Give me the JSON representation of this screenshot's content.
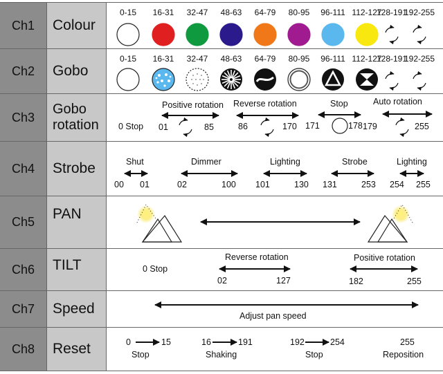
{
  "rows": [
    {
      "ch": "Ch1",
      "name": "Colour",
      "ranges": [
        "0-15",
        "16-31",
        "32-47",
        "48-63",
        "64-79",
        "80-95",
        "96-111",
        "112-127",
        "128-191",
        "192-255"
      ],
      "colors": [
        "#ffffff",
        "#e02020",
        "#109a40",
        "#2a1a8c",
        "#f07818",
        "#a01a90",
        "#5ab8ee",
        "#f8e810"
      ]
    },
    {
      "ch": "Ch2",
      "name": "Gobo",
      "ranges": [
        "0-15",
        "16-31",
        "32-47",
        "48-63",
        "64-79",
        "80-95",
        "96-111",
        "112-127",
        "128-191",
        "192-255"
      ]
    },
    {
      "ch": "Ch3",
      "name": "Gobo rotation",
      "labels": {
        "stop0": "0 Stop",
        "pos": "Positive rotation",
        "rev": "Reverse rotation",
        "stop": "Stop",
        "auto": "Auto rotation"
      },
      "values": {
        "pos_a": "01",
        "pos_b": "85",
        "rev_a": "86",
        "rev_b": "170",
        "stop_a": "171",
        "stop_b": "178",
        "auto_a": "179",
        "auto_b": "255"
      }
    },
    {
      "ch": "Ch4",
      "name": "Strobe",
      "labels": {
        "shut": "Shut",
        "dimmer": "Dimmer",
        "lighting1": "Lighting",
        "strobe": "Strobe",
        "lighting2": "Lighting"
      },
      "values": {
        "shut_a": "00",
        "shut_b": "01",
        "dim_a": "02",
        "dim_b": "100",
        "lig_a": "101",
        "lig_b": "130",
        "str_a": "131",
        "str_b": "253",
        "lig2_a": "254",
        "lig2_b": "255"
      }
    },
    {
      "ch": "Ch5",
      "name": "PAN"
    },
    {
      "ch": "Ch6",
      "name": "TILT",
      "labels": {
        "stop": "0 Stop",
        "rev": "Reverse rotation",
        "pos": "Positive rotation"
      },
      "values": {
        "rev_a": "02",
        "rev_b": "127",
        "pos_a": "182",
        "pos_b": "255"
      }
    },
    {
      "ch": "Ch7",
      "name": "Speed",
      "labels": {
        "adjust": "Adjust pan speed"
      }
    },
    {
      "ch": "Ch8",
      "name": "Reset",
      "values": {
        "a0": "0",
        "a1": "15",
        "b0": "16",
        "b1": "191",
        "c0": "192",
        "c1": "254",
        "d": "255"
      },
      "labels": {
        "stop1": "Stop",
        "shaking": "Shaking",
        "stop2": "Stop",
        "reposition": "Reposition"
      }
    }
  ]
}
